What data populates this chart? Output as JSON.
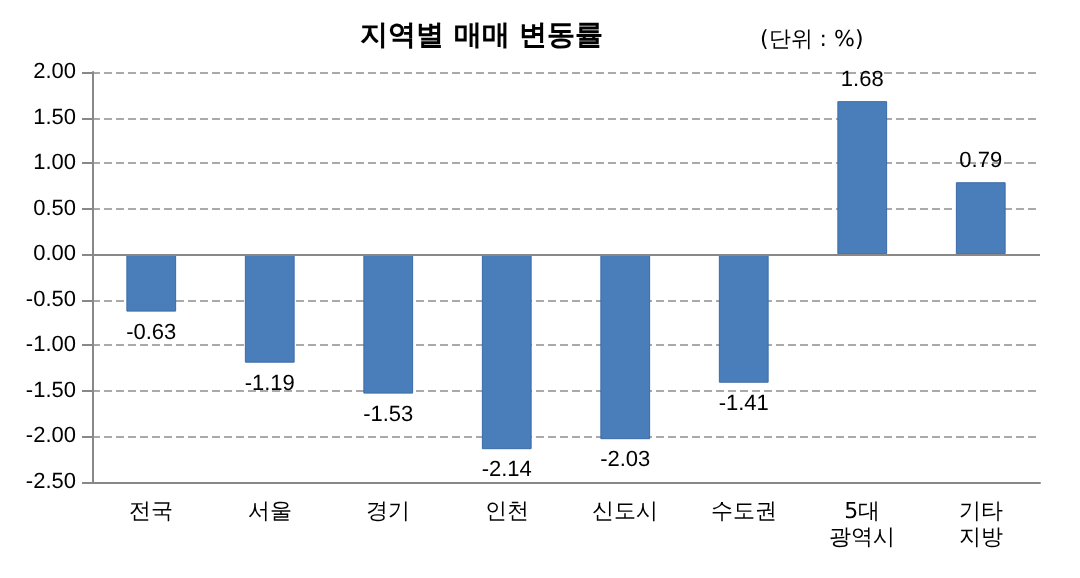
{
  "chart_data": {
    "type": "bar",
    "title": "지역별 매매 변동률",
    "subtitle": "(단위 : %)",
    "categories": [
      "전국",
      "서울",
      "경기",
      "인천",
      "신도시",
      "수도권",
      "5대\n광역시",
      "기타\n지방"
    ],
    "values": [
      -0.63,
      -1.19,
      -1.53,
      -2.14,
      -2.03,
      -1.41,
      1.68,
      0.79
    ],
    "color": "#4a7ebb",
    "ylim": [
      -2.5,
      2
    ],
    "yticks": [
      {
        "value": -2.5,
        "label": "-2.50"
      },
      {
        "value": -2,
        "label": "-2.00"
      },
      {
        "value": -1.5,
        "label": "-1.50"
      },
      {
        "value": -1,
        "label": "-1.00"
      },
      {
        "value": -0.5,
        "label": "-0.50"
      },
      {
        "value": 0,
        "label": "0.00"
      },
      {
        "value": 0.5,
        "label": "0.50"
      },
      {
        "value": 1,
        "label": "1.00"
      },
      {
        "value": 1.5,
        "label": "1.50"
      },
      {
        "value": 2,
        "label": "2.00"
      }
    ],
    "grid": "y",
    "data_labels": true
  }
}
